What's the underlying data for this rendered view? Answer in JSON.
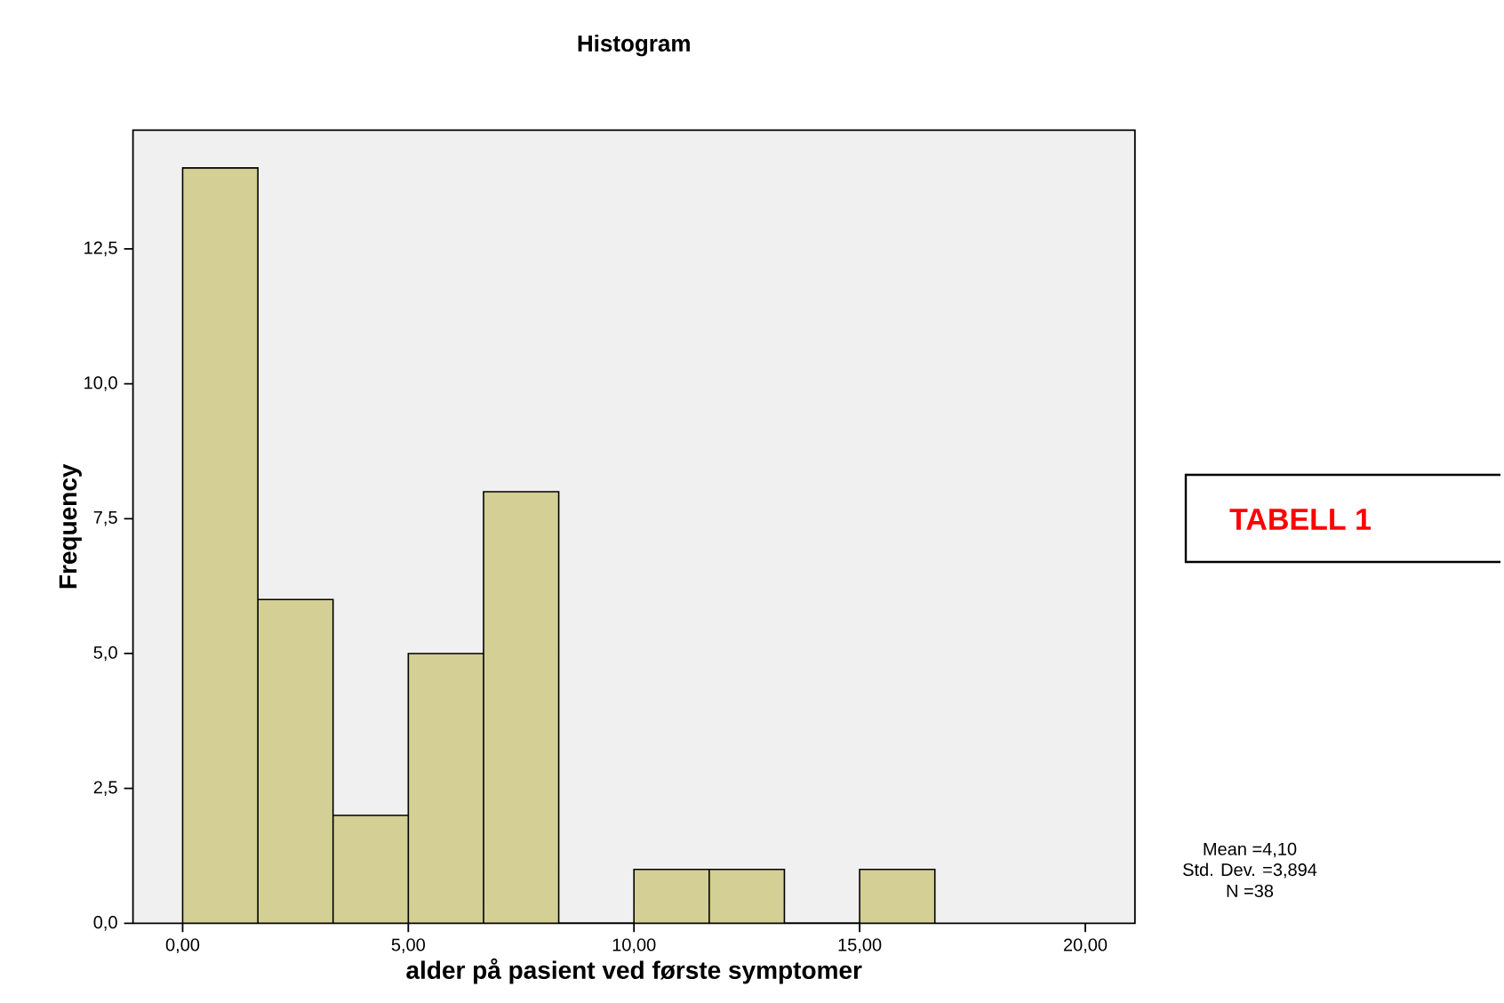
{
  "chart_data": {
    "type": "histogram",
    "title": "Histogram",
    "xlabel": "alder på pasient ved første symptomer",
    "ylabel": "Frequency",
    "bins": [
      0,
      1.667,
      3.333,
      5,
      6.667,
      8.333,
      10,
      11.667,
      13.333,
      15,
      16.667
    ],
    "values": [
      14,
      6,
      2,
      5,
      8,
      0,
      1,
      1,
      0,
      1
    ],
    "color": "#d3cf95",
    "xlim": [
      -1.1,
      21.1
    ],
    "ylim": [
      0,
      14.7
    ],
    "xticks": [
      {
        "value": 0,
        "label": "0,00"
      },
      {
        "value": 5,
        "label": "5,00"
      },
      {
        "value": 10,
        "label": "10,00"
      },
      {
        "value": 15,
        "label": "15,00"
      },
      {
        "value": 20,
        "label": "20,00"
      }
    ],
    "yticks": [
      {
        "value": 0,
        "label": "0,0"
      },
      {
        "value": 2.5,
        "label": "2,5"
      },
      {
        "value": 5,
        "label": "5,0"
      },
      {
        "value": 7.5,
        "label": "7,5"
      },
      {
        "value": 10,
        "label": "10,0"
      },
      {
        "value": 12.5,
        "label": "12,5"
      }
    ],
    "grid": false,
    "annotations": [
      "Mean =4,10",
      "Std. Dev. =3,894",
      "N =38",
      "TABELL 1"
    ]
  }
}
